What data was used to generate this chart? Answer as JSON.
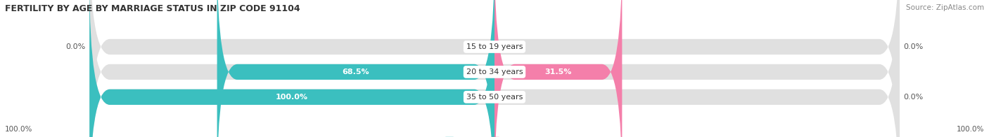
{
  "title": "FERTILITY BY AGE BY MARRIAGE STATUS IN ZIP CODE 91104",
  "source": "Source: ZipAtlas.com",
  "categories": [
    "15 to 19 years",
    "20 to 34 years",
    "35 to 50 years"
  ],
  "married_values": [
    0.0,
    68.5,
    100.0
  ],
  "unmarried_values": [
    0.0,
    31.5,
    0.0
  ],
  "married_color": "#3bbfbf",
  "unmarried_color": "#f47faa",
  "bar_bg_color": "#e0e0e0",
  "bar_height": 0.62,
  "title_fontsize": 9,
  "source_fontsize": 7.5,
  "label_fontsize": 8,
  "value_fontsize": 8,
  "tick_fontsize": 7.5,
  "fig_bg_color": "#ffffff",
  "axis_bg_color": "#ffffff",
  "left_labels": [
    "0.0%",
    "68.5%",
    "100.0%"
  ],
  "right_labels": [
    "0.0%",
    "31.5%",
    "0.0%"
  ],
  "bottom_left": "100.0%",
  "bottom_right": "100.0%"
}
